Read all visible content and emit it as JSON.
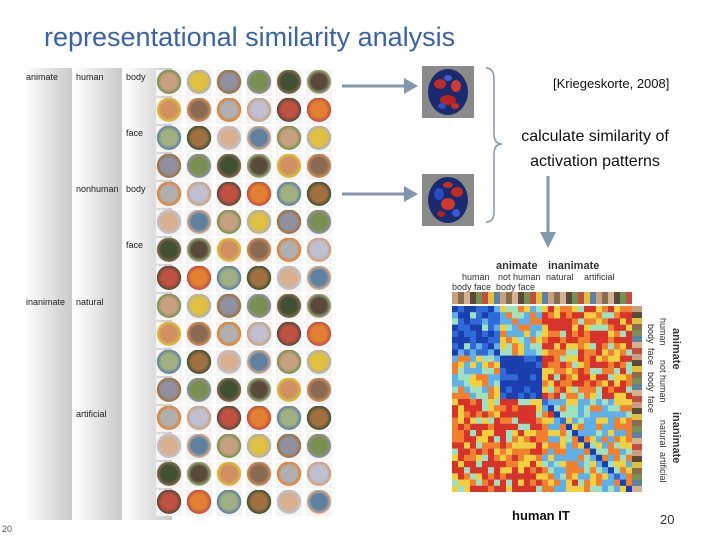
{
  "slide": {
    "title": "representational similarity analysis",
    "citation": "[Kriegeskorte, 2008]",
    "note": "calculate similarity of activation patterns",
    "slide_number_left": "20",
    "slide_number_right": "20"
  },
  "stimulus_panel": {
    "level1": [
      "animate",
      "inanimate"
    ],
    "level2": [
      "human",
      "nonhuman",
      "natural",
      "artificial"
    ],
    "level3": [
      "body",
      "face",
      "body",
      "face"
    ]
  },
  "matrix": {
    "top_groups": [
      "animate",
      "inanimate"
    ],
    "top_sub": [
      "human",
      "not human",
      "natural",
      "artificial"
    ],
    "top_parts": [
      "body",
      "face",
      "body",
      "face"
    ],
    "side_groups": [
      "animate",
      "inanimate"
    ],
    "side_sub": [
      "human",
      "not human",
      "natural",
      "artificial"
    ],
    "side_parts": [
      "body",
      "face",
      "body",
      "face"
    ],
    "caption": "human IT"
  },
  "colors": {
    "title": "#3a62a8",
    "arrow": "#8296ad",
    "matrix_red": "#d8332a",
    "matrix_blue": "#1c3fb0"
  }
}
